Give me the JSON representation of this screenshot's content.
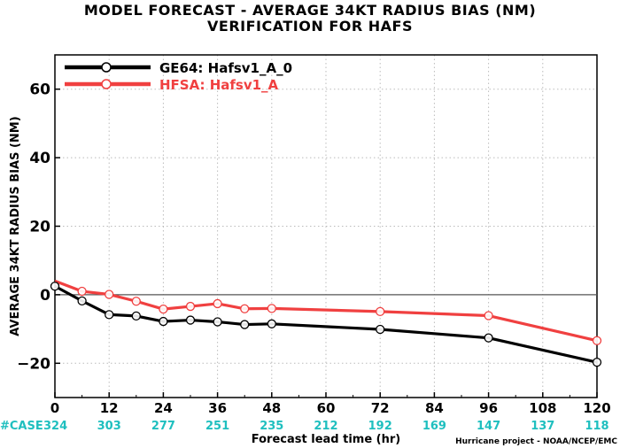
{
  "titles": {
    "line1": "MODEL FORECAST - AVERAGE 34KT RADIUS BIAS (NM)",
    "line2": "VERIFICATION FOR HAFS"
  },
  "case_label": "#CASE",
  "credit": "Hurricane project - NOAA/NCEP/EMC",
  "colors": {
    "case_text": "#1fbfbf",
    "zero_line": "#555555",
    "grid": "#bbbbbb"
  },
  "chart_data": {
    "type": "line",
    "xlabel": "Forecast lead time (hr)",
    "ylabel": "AVERAGE 34KT RADIUS BIAS (NM)",
    "xlim": [
      0,
      120
    ],
    "ylim": [
      -30,
      70
    ],
    "xticks": [
      0,
      12,
      24,
      36,
      48,
      60,
      72,
      84,
      96,
      108,
      120
    ],
    "yticks": [
      -20,
      0,
      20,
      40,
      60
    ],
    "grid": true,
    "legend_position": "top-left",
    "cases": {
      "x": [
        0,
        12,
        24,
        36,
        48,
        60,
        72,
        84,
        96,
        108,
        120
      ],
      "values": [
        "324",
        "303",
        "277",
        "251",
        "235",
        "212",
        "192",
        "169",
        "147",
        "137",
        "118"
      ]
    },
    "series": [
      {
        "name": "GE64: Hafsv1_A_0",
        "color": "#000000",
        "x": [
          0,
          6,
          12,
          18,
          24,
          30,
          36,
          42,
          48,
          72,
          96,
          120
        ],
        "y": [
          2.5,
          -1.8,
          -5.8,
          -6.2,
          -7.8,
          -7.4,
          -7.9,
          -8.7,
          -8.5,
          -10.1,
          -12.6,
          -19.7
        ],
        "markers": [
          true,
          true,
          true,
          true,
          true,
          true,
          true,
          true,
          true,
          true,
          true,
          true
        ]
      },
      {
        "name": "HFSA: Hafsv1_A",
        "color": "#f04040",
        "x": [
          0,
          6,
          12,
          18,
          24,
          30,
          36,
          42,
          48,
          72,
          96,
          120
        ],
        "y": [
          4.0,
          1.0,
          0.1,
          -1.9,
          -4.2,
          -3.4,
          -2.6,
          -4.1,
          -4.0,
          -4.9,
          -6.1,
          -13.4
        ],
        "markers": [
          false,
          true,
          true,
          true,
          true,
          true,
          true,
          true,
          true,
          true,
          true,
          true
        ]
      }
    ]
  }
}
